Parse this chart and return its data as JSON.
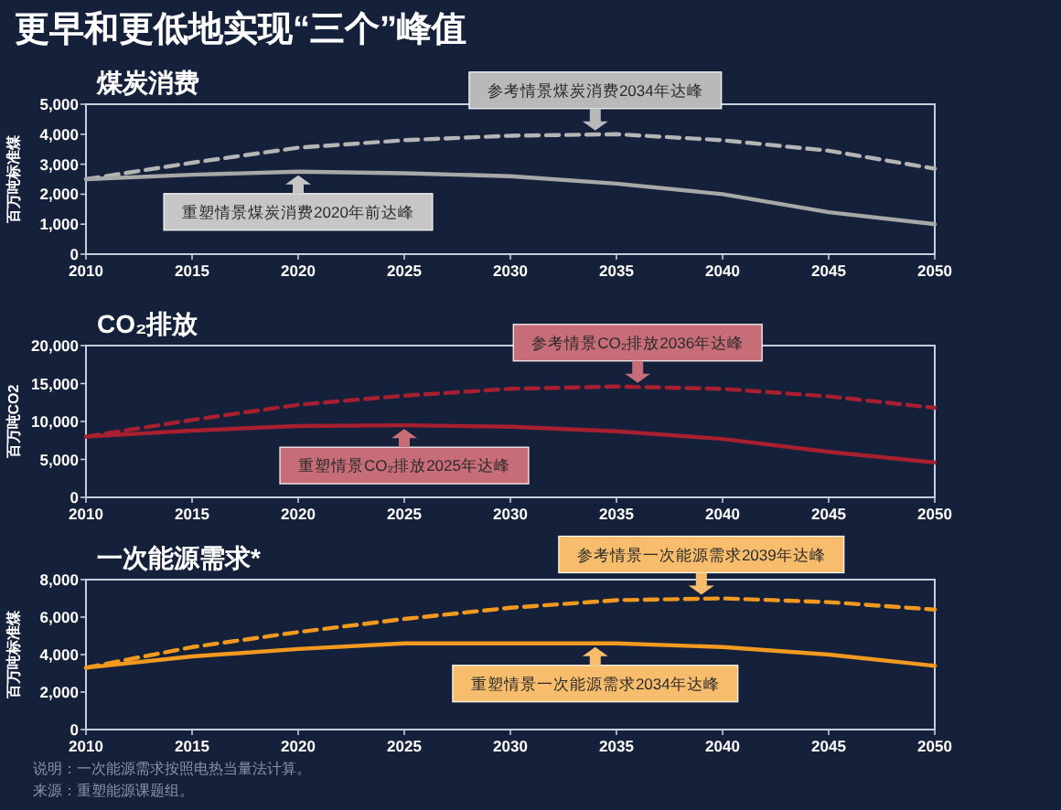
{
  "chart_data": [
    {
      "type": "line",
      "title": "煤炭消费",
      "ylabel": "百万吨标准煤",
      "x": [
        2010,
        2015,
        2020,
        2025,
        2030,
        2035,
        2040,
        2045,
        2050
      ],
      "xlim": [
        2010,
        2050
      ],
      "xticks": [
        2010,
        2015,
        2020,
        2025,
        2030,
        2035,
        2040,
        2045,
        2050
      ],
      "ylim": [
        0,
        5000
      ],
      "yticks": [
        {
          "value": 0,
          "label": "0"
        },
        {
          "value": 1000,
          "label": "1,000"
        },
        {
          "value": 2000,
          "label": "2,000"
        },
        {
          "value": 3000,
          "label": "3,000"
        },
        {
          "value": 4000,
          "label": "4,000"
        },
        {
          "value": 5000,
          "label": "5,000"
        }
      ],
      "grid": false,
      "series": [
        {
          "color": "#b5b5b5",
          "line_style": "dashed",
          "values": [
            2500,
            3050,
            3550,
            3800,
            3950,
            4000,
            3800,
            3450,
            2850
          ]
        },
        {
          "color": "#a8a8a8",
          "line_style": "solid",
          "values": [
            2500,
            2650,
            2750,
            2700,
            2600,
            2350,
            2000,
            1400,
            1000
          ]
        }
      ],
      "annotations": [
        "更早和更低地实现“三个”峰值",
        {
          "text": "参考情景煤炭消费2034年达峰",
          "x": 2034,
          "y": 4000
        },
        {
          "text": "重塑情景煤炭消费2020年前达峰",
          "x": 2020,
          "y": 2750
        }
      ]
    },
    {
      "type": "line",
      "title": "CO₂排放",
      "ylabel": "百万吨CO2",
      "x": [
        2010,
        2015,
        2020,
        2025,
        2030,
        2035,
        2040,
        2045,
        2050
      ],
      "xlim": [
        2010,
        2050
      ],
      "xticks": [
        2010,
        2015,
        2020,
        2025,
        2030,
        2035,
        2040,
        2045,
        2050
      ],
      "ylim": [
        0,
        20000
      ],
      "yticks": [
        {
          "value": 0,
          "label": "0"
        },
        {
          "value": 5000,
          "label": "5,000"
        },
        {
          "value": 10000,
          "label": "10,000"
        },
        {
          "value": 15000,
          "label": "15,000"
        },
        {
          "value": 20000,
          "label": "20,000"
        }
      ],
      "grid": false,
      "series": [
        {
          "color": "#a81f30",
          "line_style": "dashed",
          "values": [
            8000,
            10200,
            12200,
            13400,
            14300,
            14600,
            14300,
            13300,
            11800
          ]
        },
        {
          "color": "#a81f30",
          "line_style": "solid",
          "values": [
            8000,
            8800,
            9400,
            9500,
            9300,
            8700,
            7700,
            6000,
            4600
          ]
        }
      ],
      "annotations": [
        {
          "text": "参考情景CO₂排放2036年达峰",
          "x": 2036,
          "y": 14600
        },
        {
          "text": "重塑情景CO₂排放2025年达峰",
          "x": 2025,
          "y": 9500
        }
      ]
    },
    {
      "type": "line",
      "title": "一次能源需求*",
      "ylabel": "百万吨标准煤",
      "x": [
        2010,
        2015,
        2020,
        2025,
        2030,
        2035,
        2040,
        2045,
        2050
      ],
      "xlim": [
        2010,
        2050
      ],
      "xticks": [
        2010,
        2015,
        2020,
        2025,
        2030,
        2035,
        2040,
        2045,
        2050
      ],
      "ylim": [
        0,
        8000
      ],
      "yticks": [
        {
          "value": 0,
          "label": "0"
        },
        {
          "value": 2000,
          "label": "2,000"
        },
        {
          "value": 4000,
          "label": "4,000"
        },
        {
          "value": 6000,
          "label": "6,000"
        },
        {
          "value": 8000,
          "label": "8,000"
        }
      ],
      "grid": false,
      "series": [
        {
          "color": "#f2991f",
          "line_style": "dashed",
          "values": [
            3300,
            4400,
            5200,
            5900,
            6500,
            6900,
            7000,
            6800,
            6400
          ]
        },
        {
          "color": "#f2991f",
          "line_style": "solid",
          "values": [
            3300,
            3900,
            4300,
            4600,
            4600,
            4600,
            4400,
            4000,
            3400
          ]
        }
      ],
      "annotations": [
        {
          "text": "参考情景一次能源需求2039年达峰",
          "x": 2039,
          "y": 7000
        },
        {
          "text": "重塑情景一次能源需求2034年达峰",
          "x": 2034,
          "y": 4600
        },
        "说明：一次能源需求按照电热当量法计算。",
        "来源：重塑能源课题组。"
      ]
    }
  ]
}
